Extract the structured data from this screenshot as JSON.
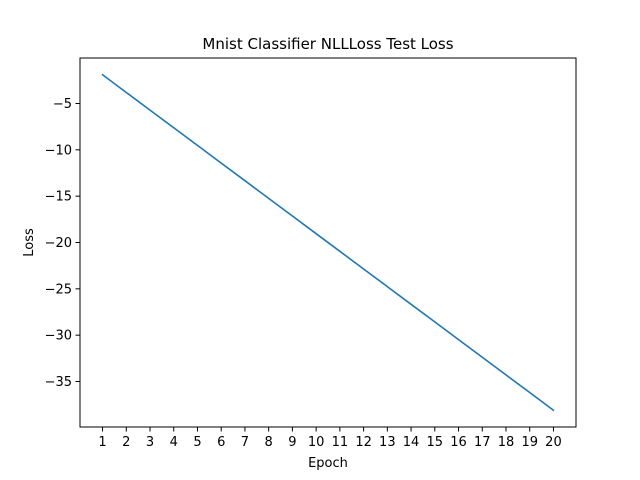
{
  "chart_data": {
    "type": "line",
    "title": "Mnist Classifier NLLLoss Test Loss",
    "xlabel": "Epoch",
    "ylabel": "Loss",
    "x": [
      1,
      2,
      3,
      4,
      5,
      6,
      7,
      8,
      9,
      10,
      11,
      12,
      13,
      14,
      15,
      16,
      17,
      18,
      19,
      20
    ],
    "series": [
      {
        "values": [
          -1.9,
          -3.81,
          -5.71,
          -7.62,
          -9.52,
          -11.43,
          -13.33,
          -15.24,
          -17.14,
          -19.05,
          -20.95,
          -22.86,
          -24.76,
          -26.67,
          -28.57,
          -30.48,
          -32.38,
          -34.29,
          -36.19,
          -38.1
        ],
        "color": "#1f77b4"
      }
    ],
    "xticks": [
      1,
      2,
      3,
      4,
      5,
      6,
      7,
      8,
      9,
      10,
      11,
      12,
      13,
      14,
      15,
      16,
      17,
      18,
      19,
      20
    ],
    "yticks": [
      -5,
      -10,
      -15,
      -20,
      -25,
      -30,
      -35
    ],
    "xlim": [
      0.05,
      20.95
    ],
    "ylim": [
      -39.91,
      -0.09
    ],
    "grid": false,
    "legend": "none"
  }
}
